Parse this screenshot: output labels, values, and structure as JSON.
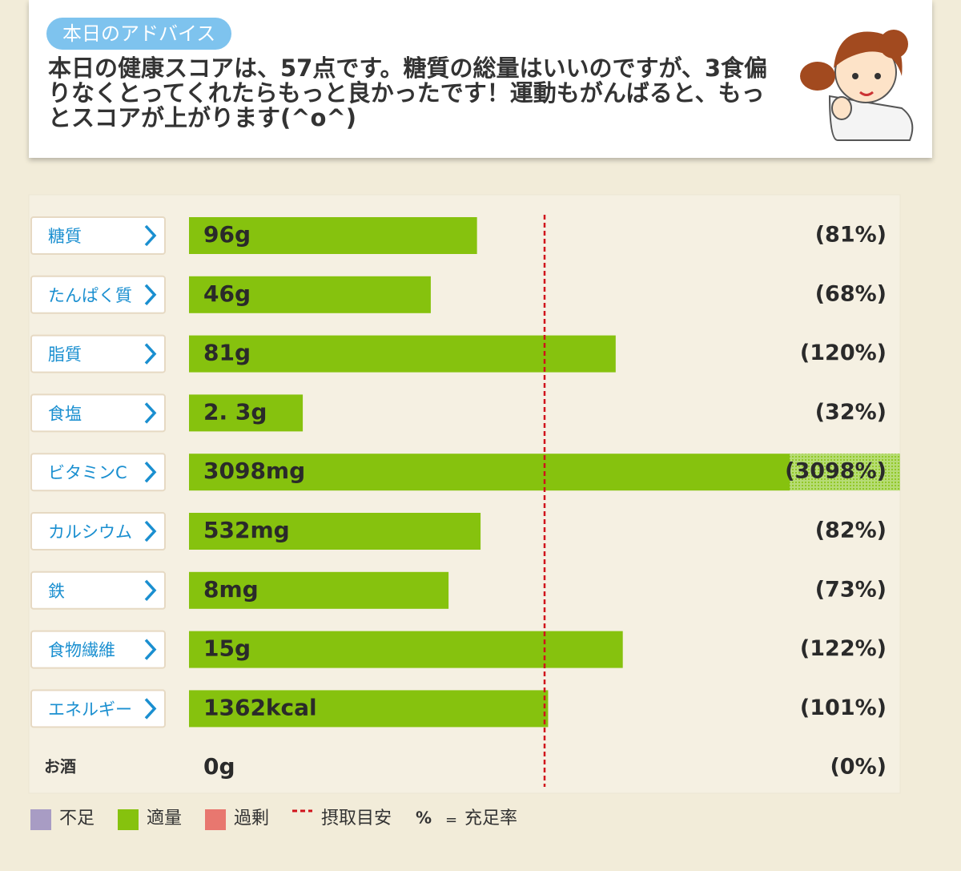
{
  "advice": {
    "badge": "本日のアドバイス",
    "text": "本日の健康スコアは、57点です。糖質の総量はいいのですが、3食偏りなくとってくれたらもっと良かったです！運動もがんばると、もっとスコアが上がります(^o^)"
  },
  "chart_data": {
    "type": "bar",
    "categories": [
      "糖質",
      "たんぱく質",
      "脂質",
      "食塩",
      "ビタミンC",
      "カルシウム",
      "鉄",
      "食物繊維",
      "エネルギー",
      "お酒"
    ],
    "amounts": [
      "96g",
      "46g",
      "81g",
      "2. 3g",
      "3098mg",
      "532mg",
      "8mg",
      "15g",
      "1362kcal",
      "0g"
    ],
    "values": [
      81,
      68,
      120,
      32,
      3098,
      82,
      73,
      122,
      101,
      0
    ],
    "value_labels": [
      "(81%)",
      "(68%)",
      "(120%)",
      "(32%)",
      "(3098%)",
      "(82%)",
      "(73%)",
      "(122%)",
      "(101%)",
      "(0%)"
    ],
    "color": "#86c20e",
    "xlim": [
      0,
      200
    ],
    "target_line": 100,
    "target_color": "#d0121b",
    "legend": [
      {
        "name": "不足",
        "color": "#a89cc4"
      },
      {
        "name": "適量",
        "color": "#86c20e"
      },
      {
        "name": "過剰",
        "color": "#e8776f"
      }
    ],
    "target_name": "摂取目安",
    "rate_note": {
      "symbol": "%",
      "equals": "=",
      "text": "充足率"
    }
  }
}
